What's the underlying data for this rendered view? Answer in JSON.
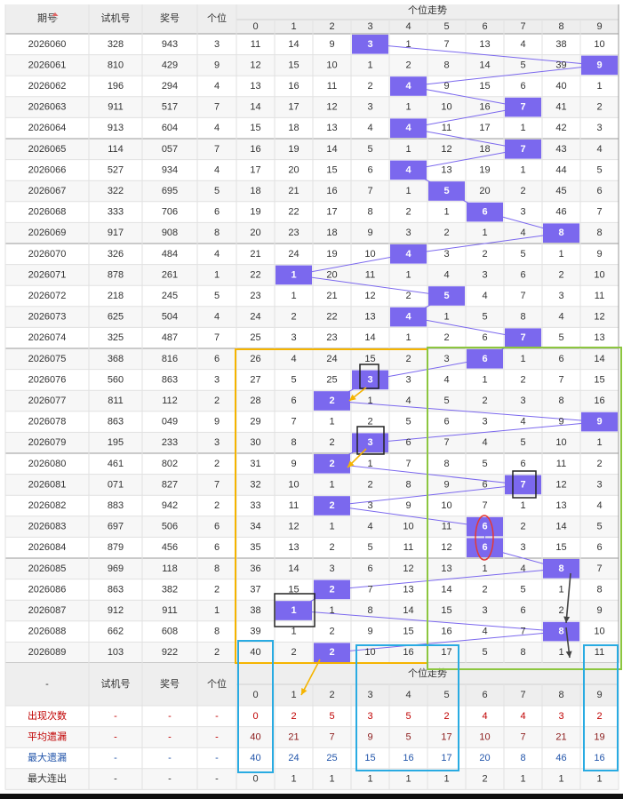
{
  "header": {
    "period_label": "期号",
    "test_label": "试机号",
    "prize_label": "奖号",
    "units_label": "个位",
    "trend_title": "个位走势",
    "digits": [
      "0",
      "1",
      "2",
      "3",
      "4",
      "5",
      "6",
      "7",
      "8",
      "9"
    ]
  },
  "footer_header": {
    "dash": "-",
    "test_label": "试机号",
    "prize_label": "奖号",
    "units_label": "个位",
    "trend_title": "个位走势"
  },
  "colors": {
    "highlight": "#7b68ee",
    "line": "#7b68ee",
    "orange_box": "#f5b400",
    "green_box": "#8cc63f",
    "blue_box": "#29abe2",
    "black_box": "#222222",
    "red_oval": "#e53935",
    "header_bg": "#eeeeee",
    "alt_row": "#f7f7f7"
  },
  "chart_data": {
    "type": "table",
    "title": "个位走势",
    "columns": [
      "期号",
      "试机号",
      "奖号",
      "个位",
      "0",
      "1",
      "2",
      "3",
      "4",
      "5",
      "6",
      "7",
      "8",
      "9"
    ],
    "rows": [
      {
        "period": "2026060",
        "test": "328",
        "prize": "943",
        "unit": 3,
        "miss": [
          "11",
          "14",
          "9",
          "3",
          "1",
          "7",
          "13",
          "4",
          "38",
          "10"
        ]
      },
      {
        "period": "2026061",
        "test": "810",
        "prize": "429",
        "unit": 9,
        "miss": [
          "12",
          "15",
          "10",
          "1",
          "2",
          "8",
          "14",
          "5",
          "39",
          "9"
        ]
      },
      {
        "period": "2026062",
        "test": "196",
        "prize": "294",
        "unit": 4,
        "miss": [
          "13",
          "16",
          "11",
          "2",
          "4",
          "9",
          "15",
          "6",
          "40",
          "1"
        ]
      },
      {
        "period": "2026063",
        "test": "911",
        "prize": "517",
        "unit": 7,
        "miss": [
          "14",
          "17",
          "12",
          "3",
          "1",
          "10",
          "16",
          "7",
          "41",
          "2"
        ]
      },
      {
        "period": "2026064",
        "test": "913",
        "prize": "604",
        "unit": 4,
        "miss": [
          "15",
          "18",
          "13",
          "4",
          "4",
          "11",
          "17",
          "1",
          "42",
          "3"
        ]
      },
      {
        "period": "2026065",
        "test": "114",
        "prize": "057",
        "unit": 7,
        "miss": [
          "16",
          "19",
          "14",
          "5",
          "1",
          "12",
          "18",
          "7",
          "43",
          "4"
        ]
      },
      {
        "period": "2026066",
        "test": "527",
        "prize": "934",
        "unit": 4,
        "miss": [
          "17",
          "20",
          "15",
          "6",
          "4",
          "13",
          "19",
          "1",
          "44",
          "5"
        ]
      },
      {
        "period": "2026067",
        "test": "322",
        "prize": "695",
        "unit": 5,
        "miss": [
          "18",
          "21",
          "16",
          "7",
          "1",
          "5",
          "20",
          "2",
          "45",
          "6"
        ]
      },
      {
        "period": "2026068",
        "test": "333",
        "prize": "706",
        "unit": 6,
        "miss": [
          "19",
          "22",
          "17",
          "8",
          "2",
          "1",
          "6",
          "3",
          "46",
          "7"
        ]
      },
      {
        "period": "2026069",
        "test": "917",
        "prize": "908",
        "unit": 8,
        "miss": [
          "20",
          "23",
          "18",
          "9",
          "3",
          "2",
          "1",
          "4",
          "8",
          "8"
        ]
      },
      {
        "period": "2026070",
        "test": "326",
        "prize": "484",
        "unit": 4,
        "miss": [
          "21",
          "24",
          "19",
          "10",
          "4",
          "3",
          "2",
          "5",
          "1",
          "9"
        ]
      },
      {
        "period": "2026071",
        "test": "878",
        "prize": "261",
        "unit": 1,
        "miss": [
          "22",
          "1",
          "20",
          "11",
          "1",
          "4",
          "3",
          "6",
          "2",
          "10"
        ]
      },
      {
        "period": "2026072",
        "test": "218",
        "prize": "245",
        "unit": 5,
        "miss": [
          "23",
          "1",
          "21",
          "12",
          "2",
          "5",
          "4",
          "7",
          "3",
          "11"
        ]
      },
      {
        "period": "2026073",
        "test": "625",
        "prize": "504",
        "unit": 4,
        "miss": [
          "24",
          "2",
          "22",
          "13",
          "4",
          "1",
          "5",
          "8",
          "4",
          "12"
        ]
      },
      {
        "period": "2026074",
        "test": "325",
        "prize": "487",
        "unit": 7,
        "miss": [
          "25",
          "3",
          "23",
          "14",
          "1",
          "2",
          "6",
          "7",
          "5",
          "13"
        ]
      },
      {
        "period": "2026075",
        "test": "368",
        "prize": "816",
        "unit": 6,
        "miss": [
          "26",
          "4",
          "24",
          "15",
          "2",
          "3",
          "6",
          "1",
          "6",
          "14"
        ]
      },
      {
        "period": "2026076",
        "test": "560",
        "prize": "863",
        "unit": 3,
        "miss": [
          "27",
          "5",
          "25",
          "3",
          "3",
          "4",
          "1",
          "2",
          "7",
          "15"
        ]
      },
      {
        "period": "2026077",
        "test": "811",
        "prize": "112",
        "unit": 2,
        "miss": [
          "28",
          "6",
          "2",
          "1",
          "4",
          "5",
          "2",
          "3",
          "8",
          "16"
        ]
      },
      {
        "period": "2026078",
        "test": "863",
        "prize": "049",
        "unit": 9,
        "miss": [
          "29",
          "7",
          "1",
          "2",
          "5",
          "6",
          "3",
          "4",
          "9",
          "9"
        ]
      },
      {
        "period": "2026079",
        "test": "195",
        "prize": "233",
        "unit": 3,
        "miss": [
          "30",
          "8",
          "2",
          "3",
          "6",
          "7",
          "4",
          "5",
          "10",
          "1"
        ]
      },
      {
        "period": "2026080",
        "test": "461",
        "prize": "802",
        "unit": 2,
        "miss": [
          "31",
          "9",
          "2",
          "1",
          "7",
          "8",
          "5",
          "6",
          "11",
          "2"
        ]
      },
      {
        "period": "2026081",
        "test": "071",
        "prize": "827",
        "unit": 7,
        "miss": [
          "32",
          "10",
          "1",
          "2",
          "8",
          "9",
          "6",
          "7",
          "12",
          "3"
        ]
      },
      {
        "period": "2026082",
        "test": "883",
        "prize": "942",
        "unit": 2,
        "miss": [
          "33",
          "11",
          "2",
          "3",
          "9",
          "10",
          "7",
          "1",
          "13",
          "4"
        ]
      },
      {
        "period": "2026083",
        "test": "697",
        "prize": "506",
        "unit": 6,
        "miss": [
          "34",
          "12",
          "1",
          "4",
          "10",
          "11",
          "6",
          "2",
          "14",
          "5"
        ]
      },
      {
        "period": "2026084",
        "test": "879",
        "prize": "456",
        "unit": 6,
        "miss": [
          "35",
          "13",
          "2",
          "5",
          "11",
          "12",
          "6",
          "3",
          "15",
          "6"
        ]
      },
      {
        "period": "2026085",
        "test": "969",
        "prize": "118",
        "unit": 8,
        "miss": [
          "36",
          "14",
          "3",
          "6",
          "12",
          "13",
          "1",
          "4",
          "8",
          "7"
        ]
      },
      {
        "period": "2026086",
        "test": "863",
        "prize": "382",
        "unit": 2,
        "miss": [
          "37",
          "15",
          "2",
          "7",
          "13",
          "14",
          "2",
          "5",
          "1",
          "8"
        ]
      },
      {
        "period": "2026087",
        "test": "912",
        "prize": "911",
        "unit": 1,
        "miss": [
          "38",
          "1",
          "1",
          "8",
          "14",
          "15",
          "3",
          "6",
          "2",
          "9"
        ]
      },
      {
        "period": "2026088",
        "test": "662",
        "prize": "608",
        "unit": 8,
        "miss": [
          "39",
          "1",
          "2",
          "9",
          "15",
          "16",
          "4",
          "7",
          "8",
          "10"
        ]
      },
      {
        "period": "2026089",
        "test": "103",
        "prize": "922",
        "unit": 2,
        "miss": [
          "40",
          "2",
          "2",
          "10",
          "16",
          "17",
          "5",
          "8",
          "1",
          "11"
        ]
      }
    ],
    "stats": [
      {
        "label": "出现次数",
        "dash": "-",
        "values": [
          "0",
          "2",
          "5",
          "3",
          "5",
          "2",
          "4",
          "4",
          "3",
          "2"
        ],
        "color": "#c00000",
        "label_color": "#c00000"
      },
      {
        "label": "平均遗漏",
        "dash": "-",
        "values": [
          "40",
          "21",
          "7",
          "9",
          "5",
          "17",
          "10",
          "7",
          "21",
          "19"
        ],
        "color": "#8b1a1a",
        "label_color": "#c00000"
      },
      {
        "label": "最大遗漏",
        "dash": "-",
        "values": [
          "40",
          "24",
          "25",
          "15",
          "16",
          "17",
          "20",
          "8",
          "46",
          "16"
        ],
        "color": "#2255aa",
        "label_color": "#2255aa"
      },
      {
        "label": "最大连出",
        "dash": "-",
        "values": [
          "0",
          "1",
          "1",
          "1",
          "1",
          "1",
          "2",
          "1",
          "1",
          "1"
        ],
        "color": "#333333",
        "label_color": "#333333"
      }
    ]
  }
}
